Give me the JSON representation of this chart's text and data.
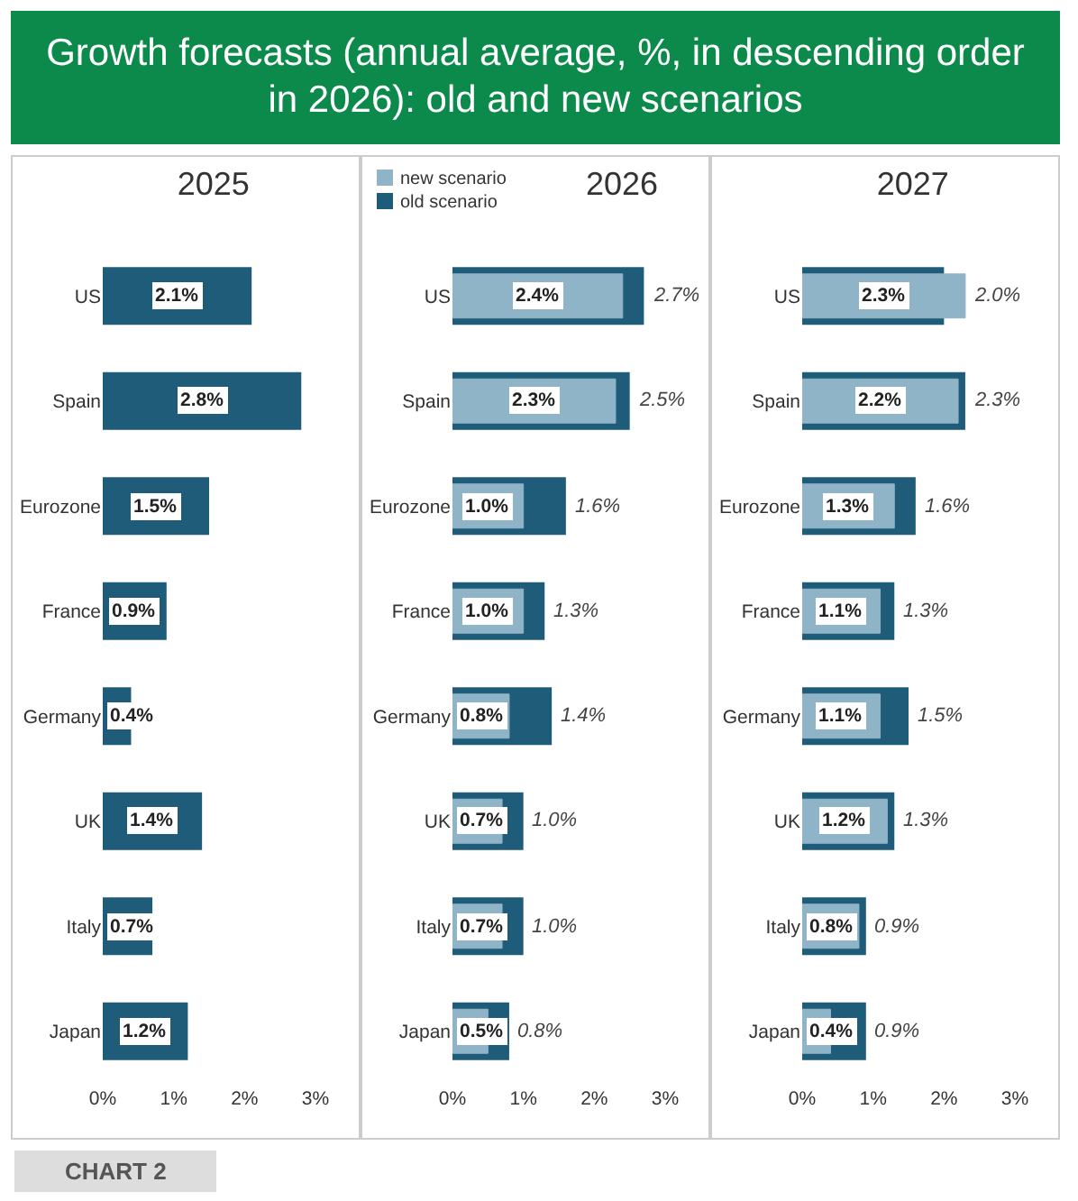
{
  "chart_data": [
    {
      "type": "bar",
      "orientation": "horizontal",
      "title": "Growth forecasts (annual average, %, in descending order in 2026): old and new scenarios",
      "subtitle": "2025",
      "categories": [
        "US",
        "Spain",
        "Eurozone",
        "France",
        "Germany",
        "UK",
        "Italy",
        "Japan"
      ],
      "series": [
        {
          "color": "#1f5c7a",
          "values": [
            2.1,
            2.8,
            1.5,
            0.9,
            0.4,
            1.4,
            0.7,
            1.2
          ],
          "value_labels": [
            "2.1%",
            "2.8%",
            "1.5%",
            "0.9%",
            "0.4%",
            "1.4%",
            "0.7%",
            "1.2%"
          ]
        }
      ],
      "xlim": [
        0,
        3
      ],
      "xticks": [
        {
          "value": 0,
          "label": "0%"
        },
        {
          "value": 1,
          "label": "1%"
        },
        {
          "value": 2,
          "label": "2%"
        },
        {
          "value": 3,
          "label": "3%"
        }
      ],
      "grid": false,
      "legend": false,
      "annotations": [
        "CHART 2"
      ]
    },
    {
      "type": "bar",
      "orientation": "horizontal",
      "title": "2026",
      "categories": [
        "US",
        "Spain",
        "Eurozone",
        "France",
        "Germany",
        "UK",
        "Italy",
        "Japan"
      ],
      "series": [
        {
          "name": "new scenario",
          "color": "#8fb4c8",
          "values": [
            2.4,
            2.3,
            1.0,
            1.0,
            0.8,
            0.7,
            0.7,
            0.5
          ],
          "value_labels": [
            "2.4%",
            "2.3%",
            "1.0%",
            "1.0%",
            "0.8%",
            "0.7%",
            "0.7%",
            "0.5%"
          ]
        },
        {
          "name": "old scenario",
          "color": "#1f5c7a",
          "values": [
            2.7,
            2.5,
            1.6,
            1.3,
            1.4,
            1.0,
            1.0,
            0.8
          ],
          "value_labels": [
            "2.7%",
            "2.5%",
            "1.6%",
            "1.3%",
            "1.4%",
            "1.0%",
            "1.0%",
            "0.8%"
          ]
        }
      ],
      "xlim": [
        0,
        3
      ],
      "xticks": [
        {
          "value": 0,
          "label": "0%"
        },
        {
          "value": 1,
          "label": "1%"
        },
        {
          "value": 2,
          "label": "2%"
        },
        {
          "value": 3,
          "label": "3%"
        }
      ],
      "grid": false,
      "legend": "top left"
    },
    {
      "type": "bar",
      "orientation": "horizontal",
      "title": "2027",
      "categories": [
        "US",
        "Spain",
        "Eurozone",
        "France",
        "Germany",
        "UK",
        "Italy",
        "Japan"
      ],
      "series": [
        {
          "color": "#8fb4c8",
          "values": [
            2.3,
            2.2,
            1.3,
            1.1,
            1.1,
            1.2,
            0.8,
            0.4
          ],
          "value_labels": [
            "2.3%",
            "2.2%",
            "1.3%",
            "1.1%",
            "1.1%",
            "1.2%",
            "0.8%",
            "0.4%"
          ]
        },
        {
          "color": "#1f5c7a",
          "values": [
            2.0,
            2.3,
            1.6,
            1.3,
            1.5,
            1.3,
            0.9,
            0.9
          ],
          "value_labels": [
            "2.0%",
            "2.3%",
            "1.6%",
            "1.3%",
            "1.5%",
            "1.3%",
            "0.9%",
            "0.9%"
          ]
        }
      ],
      "xlim": [
        0,
        3
      ],
      "xticks": [
        {
          "value": 0,
          "label": "0%"
        },
        {
          "value": 1,
          "label": "1%"
        },
        {
          "value": 2,
          "label": "2%"
        },
        {
          "value": 3,
          "label": "3%"
        }
      ],
      "grid": false,
      "legend": false
    }
  ]
}
